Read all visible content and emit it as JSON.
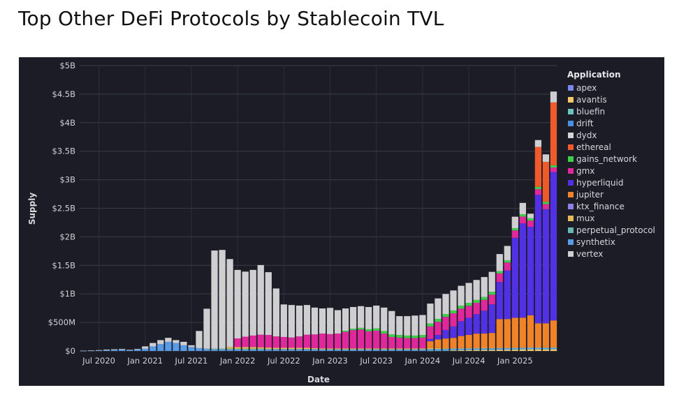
{
  "page": {
    "title": "Top Other DeFi Protocols by Stablecoin TVL"
  },
  "chart_data": {
    "type": "bar",
    "stacked": true,
    "title": "Top Other DeFi Protocols by Stablecoin TVL",
    "xlabel": "Date",
    "ylabel": "Supply",
    "ylim": [
      0,
      5000000000
    ],
    "y_ticks": [
      {
        "value": 0,
        "label": "$0"
      },
      {
        "value": 500000000,
        "label": "$500M"
      },
      {
        "value": 1000000000,
        "label": "$1B"
      },
      {
        "value": 1500000000,
        "label": "$1.5B"
      },
      {
        "value": 2000000000,
        "label": "$2B"
      },
      {
        "value": 2500000000,
        "label": "$2.5B"
      },
      {
        "value": 3000000000,
        "label": "$3B"
      },
      {
        "value": 3500000000,
        "label": "$3.5B"
      },
      {
        "value": 4000000000,
        "label": "$4B"
      },
      {
        "value": 4500000000,
        "label": "$4.5B"
      },
      {
        "value": 5000000000,
        "label": "$5B"
      }
    ],
    "x_ticks": [
      {
        "index": 2,
        "label": "Jul 2020"
      },
      {
        "index": 8,
        "label": "Jan 2021"
      },
      {
        "index": 14,
        "label": "Jul 2021"
      },
      {
        "index": 20,
        "label": "Jan 2022"
      },
      {
        "index": 26,
        "label": "Jul 2022"
      },
      {
        "index": 32,
        "label": "Jan 2023"
      },
      {
        "index": 38,
        "label": "Jul 2023"
      },
      {
        "index": 44,
        "label": "Jan 2024"
      },
      {
        "index": 50,
        "label": "Jul 2024"
      },
      {
        "index": 56,
        "label": "Jan 2025"
      }
    ],
    "legend_title": "Application",
    "legend_position": "right",
    "categories": [
      "May 2020",
      "Jun 2020",
      "Jul 2020",
      "Aug 2020",
      "Sep 2020",
      "Oct 2020",
      "Nov 2020",
      "Dec 2020",
      "Jan 2021",
      "Feb 2021",
      "Mar 2021",
      "Apr 2021",
      "May 2021",
      "Jun 2021",
      "Jul 2021",
      "Aug 2021",
      "Sep 2021",
      "Oct 2021",
      "Nov 2021",
      "Dec 2021",
      "Jan 2022",
      "Feb 2022",
      "Mar 2022",
      "Apr 2022",
      "May 2022",
      "Jun 2022",
      "Jul 2022",
      "Aug 2022",
      "Sep 2022",
      "Oct 2022",
      "Nov 2022",
      "Dec 2022",
      "Jan 2023",
      "Feb 2023",
      "Mar 2023",
      "Apr 2023",
      "May 2023",
      "Jun 2023",
      "Jul 2023",
      "Aug 2023",
      "Sep 2023",
      "Oct 2023",
      "Nov 2023",
      "Dec 2023",
      "Jan 2024",
      "Feb 2024",
      "Mar 2024",
      "Apr 2024",
      "May 2024",
      "Jun 2024",
      "Jul 2024",
      "Aug 2024",
      "Sep 2024",
      "Oct 2024",
      "Nov 2024",
      "Dec 2024",
      "Jan 2025",
      "Feb 2025",
      "Mar 2025",
      "Apr 2025",
      "May 2025",
      "Jun 2025"
    ],
    "units": "millions USD",
    "series": [
      {
        "name": "apex",
        "color": "#7b86ea",
        "values": [
          0,
          0,
          0,
          0,
          0,
          0,
          0,
          0,
          0,
          0,
          0,
          0,
          0,
          0,
          0,
          0,
          0,
          0,
          0,
          0,
          0,
          0,
          0,
          0,
          0,
          0,
          0,
          0,
          0,
          0,
          0,
          0,
          0,
          0,
          0,
          0,
          0,
          0,
          0,
          0,
          0,
          0,
          0,
          0,
          0,
          0,
          0,
          0,
          0,
          0,
          0,
          0,
          0,
          0,
          0,
          0,
          0,
          0,
          0,
          0,
          0,
          0
        ]
      },
      {
        "name": "avantis",
        "color": "#f5c86a",
        "values": [
          0,
          0,
          0,
          0,
          0,
          0,
          0,
          0,
          0,
          0,
          0,
          0,
          0,
          0,
          0,
          0,
          0,
          0,
          0,
          0,
          0,
          0,
          0,
          0,
          0,
          0,
          0,
          0,
          0,
          0,
          0,
          0,
          0,
          0,
          0,
          0,
          0,
          0,
          0,
          0,
          0,
          0,
          0,
          0,
          0,
          0,
          0,
          0,
          10,
          12,
          12,
          14,
          15,
          16,
          18,
          20,
          22,
          24,
          25,
          25,
          24,
          25
        ]
      },
      {
        "name": "bluefin",
        "color": "#6bc4bd",
        "values": [
          0,
          0,
          0,
          0,
          0,
          0,
          0,
          0,
          0,
          0,
          0,
          0,
          0,
          0,
          0,
          0,
          0,
          0,
          0,
          0,
          0,
          0,
          0,
          0,
          0,
          0,
          0,
          0,
          0,
          0,
          0,
          0,
          0,
          0,
          0,
          0,
          0,
          0,
          0,
          0,
          0,
          0,
          0,
          0,
          0,
          5,
          6,
          8,
          10,
          10,
          10,
          10,
          10,
          10,
          10,
          10,
          10,
          10,
          10,
          10,
          10,
          10
        ]
      },
      {
        "name": "drift",
        "color": "#4a90e2",
        "values": [
          0,
          0,
          0,
          0,
          0,
          0,
          0,
          0,
          0,
          0,
          0,
          0,
          0,
          0,
          0,
          0,
          0,
          0,
          0,
          0,
          0,
          0,
          0,
          0,
          0,
          0,
          0,
          0,
          0,
          0,
          0,
          0,
          0,
          0,
          0,
          0,
          0,
          0,
          0,
          0,
          0,
          0,
          0,
          0,
          0,
          0,
          0,
          0,
          0,
          0,
          0,
          0,
          0,
          0,
          0,
          0,
          0,
          0,
          0,
          0,
          0,
          0
        ]
      },
      {
        "name": "dydx",
        "color": "#d5d5d5",
        "values": [
          0,
          0,
          0,
          0,
          0,
          0,
          0,
          0,
          0,
          0,
          0,
          0,
          0,
          0,
          0,
          0,
          0,
          0,
          0,
          0,
          0,
          0,
          0,
          0,
          0,
          0,
          0,
          0,
          0,
          0,
          0,
          0,
          0,
          0,
          0,
          0,
          0,
          0,
          0,
          0,
          0,
          0,
          0,
          0,
          0,
          0,
          0,
          0,
          0,
          0,
          0,
          0,
          0,
          0,
          0,
          0,
          0,
          0,
          0,
          0,
          0,
          0
        ]
      },
      {
        "name": "ethereal",
        "color": "#ee5a2a",
        "values": [
          0,
          0,
          0,
          0,
          0,
          0,
          0,
          0,
          0,
          0,
          0,
          0,
          0,
          0,
          0,
          0,
          0,
          0,
          0,
          0,
          0,
          0,
          0,
          0,
          0,
          0,
          0,
          0,
          0,
          0,
          0,
          0,
          0,
          0,
          0,
          0,
          0,
          0,
          0,
          0,
          0,
          0,
          0,
          0,
          0,
          0,
          0,
          0,
          0,
          0,
          0,
          0,
          0,
          0,
          0,
          0,
          0,
          0,
          0,
          700,
          700,
          1100
        ]
      },
      {
        "name": "gains_network",
        "color": "#3ecf4a",
        "values": [
          0,
          0,
          0,
          0,
          0,
          0,
          0,
          0,
          0,
          0,
          0,
          0,
          0,
          0,
          0,
          0,
          0,
          0,
          0,
          0,
          0,
          0,
          0,
          0,
          0,
          0,
          0,
          0,
          0,
          0,
          0,
          0,
          0,
          0,
          20,
          25,
          30,
          35,
          40,
          45,
          45,
          45,
          45,
          45,
          45,
          50,
          50,
          50,
          50,
          50,
          50,
          50,
          50,
          50,
          40,
          40,
          40,
          40,
          40,
          40,
          40,
          40
        ]
      },
      {
        "name": "gmx",
        "color": "#e0289c",
        "values": [
          0,
          0,
          0,
          0,
          0,
          0,
          0,
          0,
          0,
          0,
          0,
          0,
          0,
          0,
          0,
          0,
          0,
          0,
          0,
          0,
          150,
          180,
          200,
          220,
          220,
          200,
          190,
          180,
          200,
          230,
          240,
          260,
          250,
          260,
          290,
          320,
          330,
          300,
          310,
          260,
          200,
          190,
          180,
          180,
          190,
          220,
          230,
          230,
          230,
          220,
          210,
          200,
          190,
          170,
          150,
          140,
          130,
          120,
          110,
          100,
          90,
          80
        ]
      },
      {
        "name": "hyperliquid",
        "color": "#5131e3",
        "values": [
          0,
          0,
          0,
          0,
          0,
          0,
          0,
          0,
          0,
          0,
          0,
          0,
          0,
          0,
          0,
          0,
          0,
          0,
          0,
          0,
          0,
          0,
          0,
          0,
          0,
          0,
          0,
          0,
          0,
          0,
          0,
          0,
          0,
          0,
          0,
          0,
          0,
          0,
          0,
          0,
          0,
          0,
          0,
          0,
          0,
          40,
          80,
          150,
          200,
          260,
          300,
          340,
          400,
          500,
          650,
          850,
          1400,
          1650,
          1550,
          2250,
          2000,
          2600
        ]
      },
      {
        "name": "jupiter",
        "color": "#f08227",
        "values": [
          0,
          0,
          0,
          0,
          0,
          0,
          0,
          0,
          0,
          0,
          0,
          0,
          0,
          0,
          0,
          0,
          0,
          0,
          0,
          0,
          0,
          0,
          0,
          0,
          0,
          0,
          0,
          0,
          0,
          0,
          0,
          0,
          0,
          0,
          0,
          0,
          0,
          0,
          0,
          0,
          0,
          0,
          0,
          0,
          0,
          120,
          150,
          170,
          180,
          210,
          230,
          250,
          250,
          260,
          500,
          500,
          520,
          520,
          560,
          420,
          420,
          470
        ]
      },
      {
        "name": "ktx_finance",
        "color": "#8b80e8",
        "values": [
          0,
          0,
          0,
          0,
          0,
          0,
          0,
          0,
          0,
          0,
          0,
          0,
          0,
          0,
          0,
          0,
          0,
          0,
          0,
          0,
          0,
          0,
          0,
          0,
          0,
          0,
          0,
          0,
          0,
          0,
          0,
          0,
          0,
          0,
          0,
          0,
          0,
          0,
          0,
          0,
          0,
          0,
          0,
          0,
          0,
          0,
          0,
          0,
          0,
          0,
          0,
          0,
          0,
          0,
          0,
          0,
          0,
          0,
          0,
          0,
          0,
          0
        ]
      },
      {
        "name": "mux",
        "color": "#e8b85a",
        "values": [
          0,
          0,
          0,
          0,
          0,
          0,
          0,
          0,
          0,
          0,
          0,
          0,
          0,
          0,
          0,
          0,
          0,
          0,
          0,
          30,
          30,
          30,
          30,
          25,
          25,
          20,
          20,
          20,
          20,
          20,
          15,
          15,
          15,
          15,
          15,
          15,
          15,
          15,
          15,
          15,
          15,
          15,
          15,
          15,
          15,
          15,
          15,
          10,
          10,
          10,
          10,
          10,
          10,
          10,
          10,
          10,
          10,
          10,
          10,
          10,
          10,
          10
        ]
      },
      {
        "name": "perpetual_protocol",
        "color": "#67b9b3",
        "values": [
          0,
          0,
          0,
          0,
          0,
          0,
          0,
          0,
          0,
          0,
          0,
          0,
          0,
          0,
          0,
          0,
          10,
          20,
          20,
          20,
          20,
          20,
          20,
          20,
          15,
          15,
          15,
          15,
          15,
          15,
          15,
          10,
          10,
          10,
          10,
          10,
          10,
          10,
          10,
          10,
          10,
          10,
          10,
          10,
          10,
          10,
          10,
          10,
          0,
          0,
          0,
          0,
          0,
          0,
          0,
          0,
          0,
          0,
          0,
          0,
          0,
          0
        ]
      },
      {
        "name": "synthetix",
        "color": "#5a9be8",
        "values": [
          3,
          5,
          10,
          15,
          20,
          25,
          15,
          25,
          40,
          80,
          120,
          160,
          140,
          100,
          70,
          50,
          30,
          20,
          20,
          20,
          20,
          20,
          20,
          20,
          20,
          20,
          20,
          20,
          20,
          20,
          20,
          20,
          20,
          20,
          20,
          20,
          20,
          20,
          20,
          20,
          20,
          20,
          20,
          20,
          20,
          20,
          20,
          20,
          20,
          20,
          20,
          20,
          20,
          20,
          20,
          20,
          20,
          20,
          20,
          20,
          20,
          20
        ]
      },
      {
        "name": "vertex",
        "color": "#cfcfd2",
        "values": [
          2,
          5,
          5,
          10,
          10,
          10,
          5,
          10,
          40,
          60,
          70,
          70,
          50,
          60,
          30,
          300,
          700,
          1720,
          1730,
          1540,
          1200,
          1140,
          1150,
          1220,
          1100,
          840,
          570,
          570,
          540,
          520,
          470,
          440,
          460,
          410,
          390,
          380,
          380,
          390,
          400,
          410,
          410,
          330,
          340,
          350,
          350,
          350,
          360,
          350,
          350,
          350,
          350,
          350,
          350,
          350,
          300,
          250,
          200,
          200,
          80,
          120,
          130,
          190
        ]
      }
    ]
  }
}
